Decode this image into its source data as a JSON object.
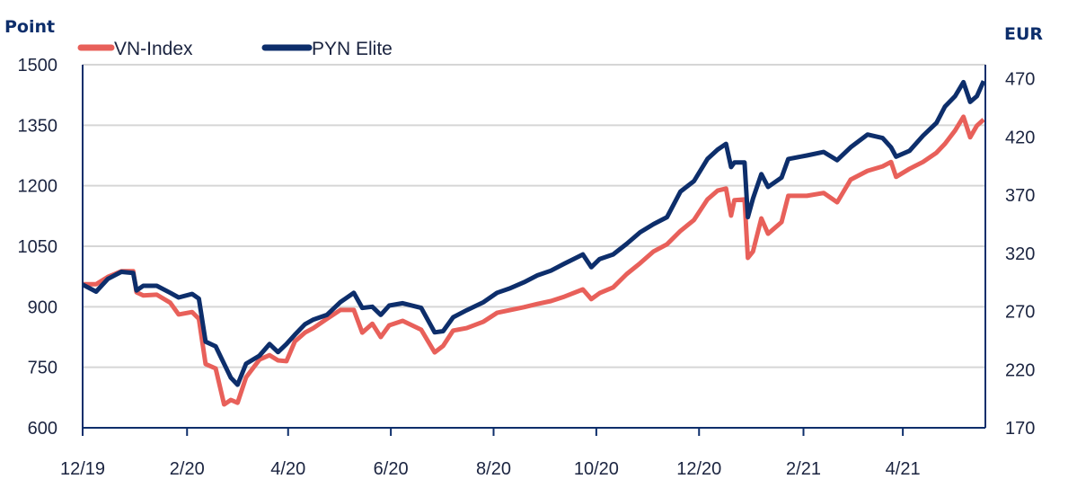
{
  "chart_data": {
    "type": "line",
    "title": "",
    "ylabel_left": "Point",
    "ylabel_right": "EUR",
    "xlim": [
      "2019-12-01",
      "2021-05-20"
    ],
    "ylim_left": [
      600,
      1500
    ],
    "ylim_right": [
      170,
      482
    ],
    "yticks_left": [
      "1500",
      "1350",
      "1200",
      "1050",
      "900",
      "750",
      "600"
    ],
    "yticks_right": [
      "470",
      "420",
      "370",
      "320",
      "270",
      "220",
      "170"
    ],
    "xticks": [
      {
        "label": "12/19",
        "date": "2019-12-01"
      },
      {
        "label": "2/20",
        "date": "2020-02-01"
      },
      {
        "label": "4/20",
        "date": "2020-04-01"
      },
      {
        "label": "6/20",
        "date": "2020-06-01"
      },
      {
        "label": "8/20",
        "date": "2020-08-01"
      },
      {
        "label": "10/20",
        "date": "2020-10-01"
      },
      {
        "label": "12/20",
        "date": "2020-12-01"
      },
      {
        "label": "2/21",
        "date": "2021-02-01"
      },
      {
        "label": "4/21",
        "date": "2021-04-01"
      }
    ],
    "grid": true,
    "legend_position": "top-left",
    "dates": [
      "2019-12-01",
      "2019-12-09",
      "2019-12-16",
      "2019-12-24",
      "2019-12-31",
      "2020-01-02",
      "2020-01-06",
      "2020-01-14",
      "2020-01-22",
      "2020-01-27",
      "2020-02-04",
      "2020-02-08",
      "2020-02-12",
      "2020-02-18",
      "2020-02-23",
      "2020-02-27",
      "2020-03-02",
      "2020-03-07",
      "2020-03-15",
      "2020-03-21",
      "2020-03-26",
      "2020-03-31",
      "2020-04-05",
      "2020-04-11",
      "2020-04-16",
      "2020-04-24",
      "2020-05-02",
      "2020-05-10",
      "2020-05-15",
      "2020-05-21",
      "2020-05-26",
      "2020-05-31",
      "2020-06-08",
      "2020-06-19",
      "2020-06-27",
      "2020-07-02",
      "2020-07-08",
      "2020-07-16",
      "2020-07-26",
      "2020-08-03",
      "2020-08-11",
      "2020-08-19",
      "2020-08-27",
      "2020-09-04",
      "2020-09-12",
      "2020-09-23",
      "2020-09-28",
      "2020-10-03",
      "2020-10-11",
      "2020-10-19",
      "2020-10-27",
      "2020-11-04",
      "2020-11-12",
      "2020-11-20",
      "2020-11-28",
      "2020-12-06",
      "2020-12-12",
      "2020-12-17",
      "2020-12-20",
      "2020-12-22",
      "2020-12-28",
      "2020-12-30",
      "2021-01-02",
      "2021-01-07",
      "2021-01-11",
      "2021-01-19",
      "2021-01-23",
      "2021-02-03",
      "2021-02-13",
      "2021-02-21",
      "2021-03-01",
      "2021-03-11",
      "2021-03-20",
      "2021-03-25",
      "2021-03-28",
      "2021-04-05",
      "2021-04-13",
      "2021-04-21",
      "2021-04-26",
      "2021-05-02",
      "2021-05-07",
      "2021-05-11",
      "2021-05-15",
      "2021-05-19"
    ],
    "series": [
      {
        "name": "VN-Index",
        "axis": "left",
        "color": "#e8605a",
        "values": [
          956,
          956,
          974,
          988,
          988,
          936,
          928,
          930,
          910,
          881,
          887,
          870,
          758,
          747,
          658,
          669,
          662,
          725,
          769,
          780,
          767,
          765,
          814,
          836,
          847,
          870,
          892,
          892,
          836,
          858,
          825,
          854,
          865,
          843,
          787,
          803,
          841,
          847,
          863,
          885,
          892,
          899,
          907,
          914,
          925,
          943,
          919,
          934,
          948,
          981,
          1008,
          1037,
          1055,
          1088,
          1115,
          1166,
          1188,
          1193,
          1126,
          1164,
          1166,
          1021,
          1037,
          1119,
          1081,
          1110,
          1175,
          1175,
          1182,
          1159,
          1215,
          1237,
          1248,
          1259,
          1222,
          1242,
          1259,
          1282,
          1304,
          1337,
          1371,
          1320,
          1349,
          1364
        ]
      },
      {
        "name": "PYN Elite",
        "axis": "right",
        "color": "#0d2e6b",
        "values": [
          293,
          287,
          298,
          304,
          303,
          288,
          292,
          292,
          286,
          282,
          285,
          281,
          244,
          240,
          225,
          213,
          207,
          225,
          232,
          242,
          235,
          242,
          250,
          259,
          263,
          267,
          278,
          286,
          273,
          274,
          267,
          275,
          277,
          273,
          252,
          253,
          265,
          271,
          278,
          286,
          290,
          295,
          301,
          305,
          311,
          319,
          308,
          315,
          319,
          328,
          338,
          345,
          351,
          373,
          382,
          401,
          409,
          414,
          394,
          398,
          398,
          351,
          367,
          388,
          377,
          385,
          401,
          404,
          407,
          400,
          411,
          422,
          419,
          411,
          403,
          408,
          421,
          432,
          446,
          455,
          467,
          450,
          455,
          468
        ]
      }
    ]
  }
}
